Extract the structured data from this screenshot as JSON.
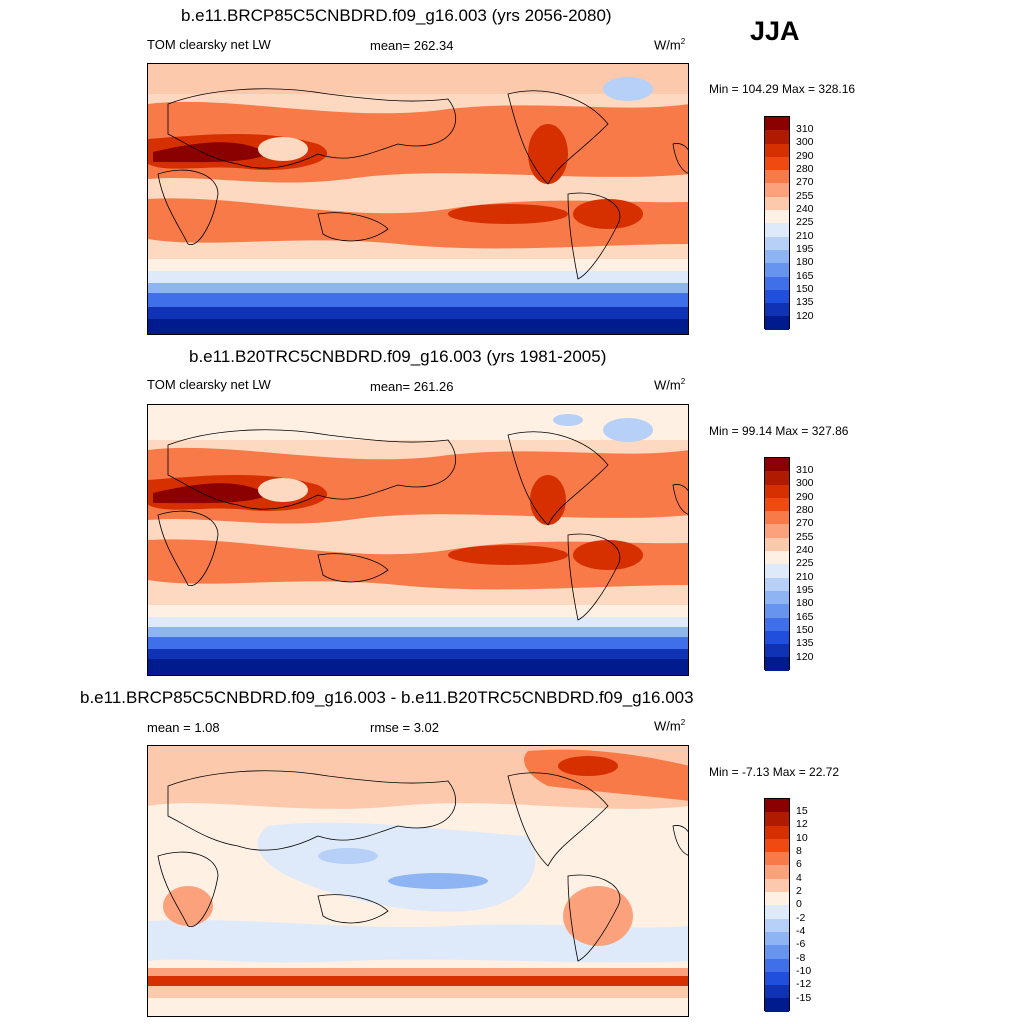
{
  "season": "JJA",
  "panels": [
    {
      "id": "future",
      "title": "b.e11.BRCP85C5CNBDRD.f09_g16.003 (yrs 2056-2080)",
      "left_label": "TOM clearsky net LW",
      "center_label": "mean= 262.34",
      "units_base": "W/m",
      "units_exp": "2",
      "minmax": "Min = 104.29 Max = 328.16"
    },
    {
      "id": "control",
      "title": "b.e11.B20TRC5CNBDRD.f09_g16.003 (yrs 1981-2005)",
      "left_label": "TOM clearsky net LW",
      "center_label": "mean= 261.26",
      "units_base": "W/m",
      "units_exp": "2",
      "minmax": "Min =  99.14 Max = 327.86"
    },
    {
      "id": "difference",
      "title": "b.e11.BRCP85C5CNBDRD.f09_g16.003 - b.e11.B20TRC5CNBDRD.f09_g16.003",
      "left_label": "mean =   1.08",
      "center_label": "rmse =   3.02",
      "units_base": "W/m",
      "units_exp": "2",
      "minmax": "Min =  -7.13 Max =  22.72"
    }
  ],
  "colorbars": {
    "absolute": {
      "colors": [
        "#8b0000",
        "#b01a00",
        "#d63000",
        "#f04a10",
        "#f77a48",
        "#fba27c",
        "#fdc9ad",
        "#fff0e4",
        "#deeaf9",
        "#b6d0f7",
        "#8fb4f3",
        "#6694ee",
        "#3f70ea",
        "#1f4fdc",
        "#1032b4",
        "#001b8e"
      ],
      "ticks": [
        "310",
        "300",
        "290",
        "280",
        "270",
        "255",
        "240",
        "225",
        "210",
        "195",
        "180",
        "165",
        "150",
        "135",
        "120"
      ]
    },
    "difference": {
      "colors": [
        "#8b0000",
        "#b01a00",
        "#d63000",
        "#f04a10",
        "#f77a48",
        "#fba27c",
        "#fdc9ad",
        "#fff0e4",
        "#deeaf9",
        "#b6d0f7",
        "#8fb4f3",
        "#6694ee",
        "#3f70ea",
        "#1f4fdc",
        "#1032b4",
        "#001b8e"
      ],
      "ticks": [
        "15",
        "12",
        "10",
        "8",
        "6",
        "4",
        "2",
        "0",
        "-2",
        "-4",
        "-6",
        "-8",
        "-10",
        "-12",
        "-15"
      ]
    }
  }
}
